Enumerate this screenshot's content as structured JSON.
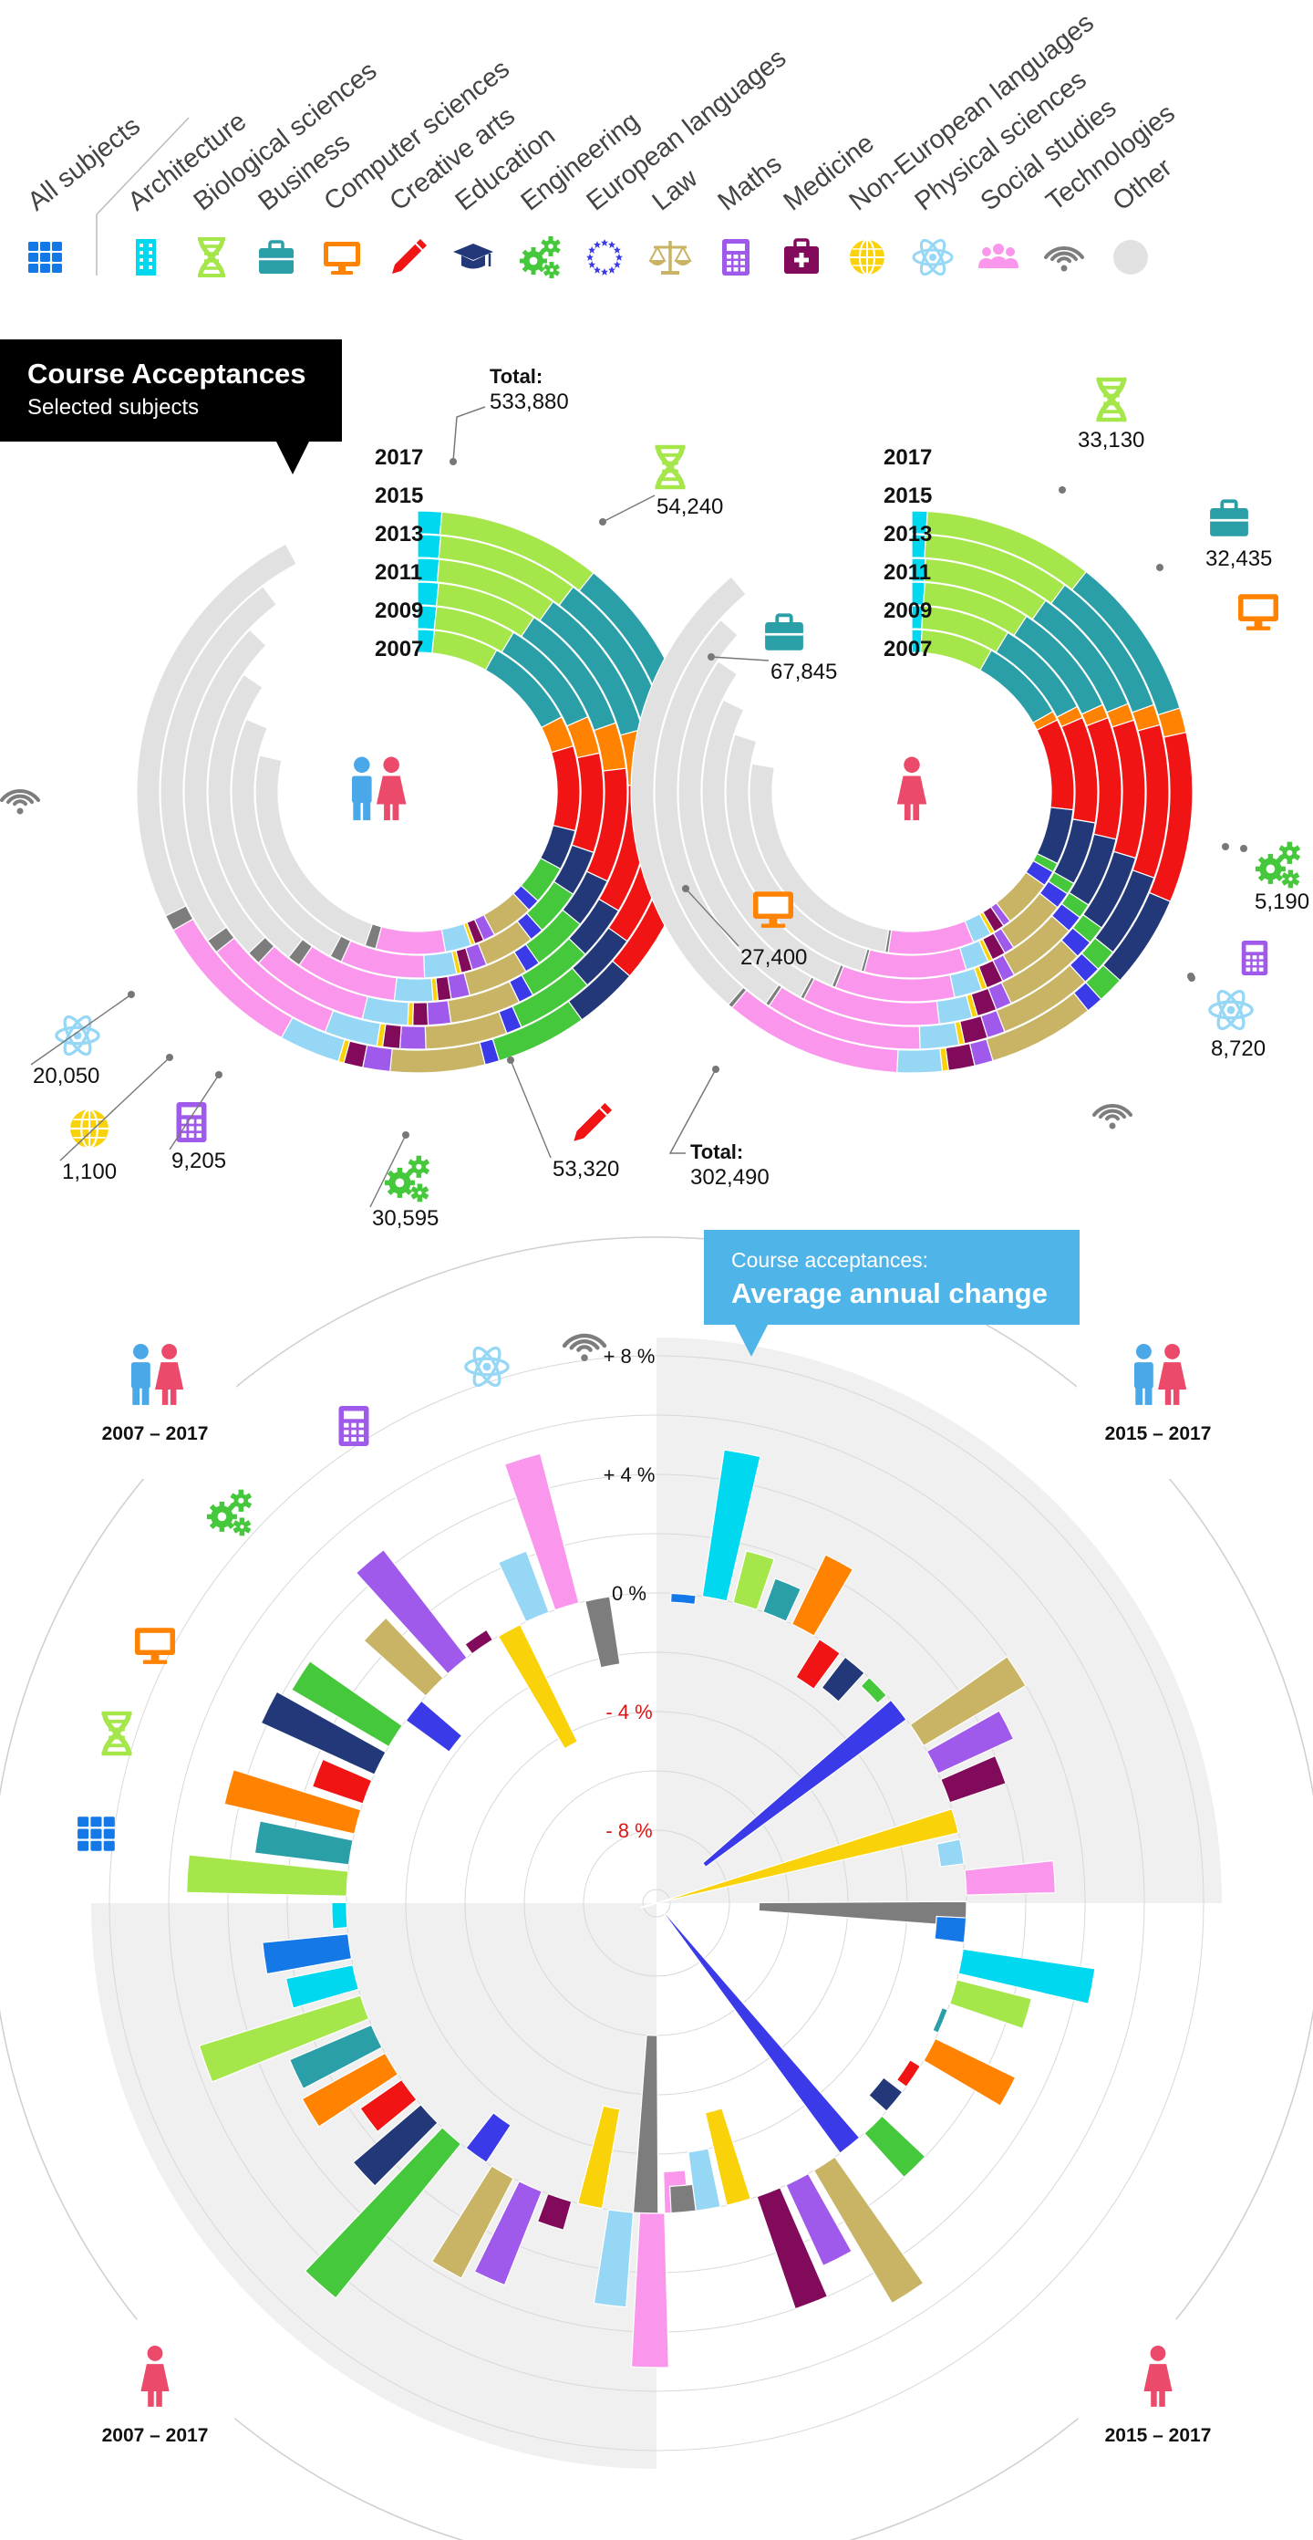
{
  "legend": {
    "items": [
      {
        "key": "all",
        "label": "All subjects",
        "color": "#1478e6",
        "icon": "grid-icon"
      },
      {
        "key": "arch",
        "label": "Architecture",
        "color": "#00d8f0",
        "icon": "building-icon"
      },
      {
        "key": "bio",
        "label": "Biological sciences",
        "color": "#a5e64b",
        "icon": "dna-icon"
      },
      {
        "key": "bus",
        "label": "Business",
        "color": "#2a9fa8",
        "icon": "briefcase-icon"
      },
      {
        "key": "comp",
        "label": "Computer sciences",
        "color": "#ff8200",
        "icon": "monitor-icon"
      },
      {
        "key": "crea",
        "label": "Creative arts",
        "color": "#f01414",
        "icon": "pencil-icon"
      },
      {
        "key": "edu",
        "label": "Education",
        "color": "#233878",
        "icon": "graduation-cap-icon"
      },
      {
        "key": "eng",
        "label": "Engineering",
        "color": "#46c83c",
        "icon": "gears-icon"
      },
      {
        "key": "euro",
        "label": "European languages",
        "color": "#3a3ae8",
        "icon": "eu-stars-icon"
      },
      {
        "key": "law",
        "label": "Law",
        "color": "#c8b464",
        "icon": "scales-icon"
      },
      {
        "key": "math",
        "label": "Maths",
        "color": "#a05aeb",
        "icon": "calculator-icon"
      },
      {
        "key": "med",
        "label": "Medicine",
        "color": "#820a5a",
        "icon": "medical-case-icon"
      },
      {
        "key": "noneu",
        "label": "Non-European languages",
        "color": "#fad20a",
        "icon": "globe-icon"
      },
      {
        "key": "phys",
        "label": "Physical sciences",
        "color": "#96d7f5",
        "icon": "atom-icon"
      },
      {
        "key": "soc",
        "label": "Social studies",
        "color": "#fa96eb",
        "icon": "people-icon"
      },
      {
        "key": "tech",
        "label": "Technologies",
        "color": "#7d7d7d",
        "icon": "wifi-icon"
      },
      {
        "key": "other",
        "label": "Other",
        "color": "#e1e1e1",
        "icon": "circle-icon"
      }
    ]
  },
  "header_box": {
    "title": "Course Acceptances",
    "subtitle": "Selected subjects"
  },
  "avg_box": {
    "subtitle": "Course acceptances:",
    "title": "Average annual change"
  },
  "chart_data": [
    {
      "type": "radial-stacked-bar",
      "title": "Course Acceptances",
      "subtitle": "Selected subjects",
      "group": "All (men and women)",
      "years": [
        "2017",
        "2015",
        "2013",
        "2011",
        "2009",
        "2007"
      ],
      "total_label": "Total:",
      "total": "533,880",
      "annotated_2017": [
        {
          "subject": "Biological sciences",
          "value": "54,240"
        },
        {
          "subject": "Business",
          "value": "67,845"
        },
        {
          "subject": "Computer sciences",
          "value": "27,400"
        },
        {
          "subject": "Creative arts",
          "value": "53,320"
        },
        {
          "subject": "Engineering",
          "value": "30,595"
        },
        {
          "subject": "Maths",
          "value": "9,205"
        },
        {
          "subject": "Non-European languages",
          "value": "1,100"
        },
        {
          "subject": "Physical sciences",
          "value": "20,050"
        }
      ]
    },
    {
      "type": "radial-stacked-bar",
      "group": "Women",
      "years": [
        "2017",
        "2015",
        "2013",
        "2011",
        "2009",
        "2007"
      ],
      "total_label": "Total:",
      "total": "302,490",
      "annotated_2017": [
        {
          "subject": "Biological sciences",
          "value": "33,130"
        },
        {
          "subject": "Business",
          "value": "32,435"
        },
        {
          "subject": "Engineering",
          "value": "5,190"
        },
        {
          "subject": "Physical sciences",
          "value": "8,720"
        }
      ]
    },
    {
      "type": "radial-bar",
      "title": "Average annual change",
      "axis_labels": [
        "+ 8 %",
        "+ 4 %",
        "0 %",
        "- 4 %",
        "- 8 %"
      ],
      "range": [
        -12,
        12
      ],
      "subjects": [
        "Architecture",
        "Biological sciences",
        "Business",
        "Computer sciences",
        "Creative arts",
        "Education",
        "Engineering",
        "European languages",
        "Law",
        "Maths",
        "Medicine",
        "Non-European languages",
        "Physical sciences",
        "Social studies",
        "Technologies"
      ],
      "quadrants": [
        {
          "name": "All 2007 – 2017",
          "period": "2007 – 2017",
          "group": "all",
          "series": [
            {
              "subject": "All subjects",
              "value": 2.5
            },
            {
              "subject": "Architecture",
              "value": 0.5
            },
            {
              "subject": "Biological sciences",
              "value": 5.4
            },
            {
              "subject": "Business",
              "value": 3.2
            },
            {
              "subject": "Computer sciences",
              "value": 4.5
            },
            {
              "subject": "Creative arts",
              "value": 1.8
            },
            {
              "subject": "Education",
              "value": 4.2
            },
            {
              "subject": "Engineering",
              "value": 3.8
            },
            {
              "subject": "European languages",
              "value": -1.8
            },
            {
              "subject": "Law",
              "value": 2.8
            },
            {
              "subject": "Maths",
              "value": 4.6
            },
            {
              "subject": "Medicine",
              "value": 0.4
            },
            {
              "subject": "Non-European languages",
              "value": -4.4
            },
            {
              "subject": "Physical sciences",
              "value": 2.2
            },
            {
              "subject": "Social studies",
              "value": 5.2
            },
            {
              "subject": "Technologies",
              "value": -2.3
            }
          ]
        },
        {
          "name": "All 2015 – 2017",
          "period": "2015 – 2017",
          "group": "all",
          "series": [
            {
              "subject": "All subjects",
              "value": -0.3
            },
            {
              "subject": "Architecture",
              "value": 5.0
            },
            {
              "subject": "Biological sciences",
              "value": 1.8
            },
            {
              "subject": "Business",
              "value": 1.2
            },
            {
              "subject": "Computer sciences",
              "value": 2.6
            },
            {
              "subject": "Creative arts",
              "value": -1.5
            },
            {
              "subject": "Education",
              "value": -1.3
            },
            {
              "subject": "Engineering",
              "value": -0.4
            },
            {
              "subject": "European languages",
              "value": -8.4
            },
            {
              "subject": "Law",
              "value": 4.0
            },
            {
              "subject": "Maths",
              "value": 2.8
            },
            {
              "subject": "Medicine",
              "value": 2.0
            },
            {
              "subject": "Non-European languages",
              "value": -11.0
            },
            {
              "subject": "Physical sciences",
              "value": -0.8
            },
            {
              "subject": "Social studies",
              "value": 3.0
            },
            {
              "subject": "Technologies",
              "value": -7.0
            }
          ]
        },
        {
          "name": "Women 2015 – 2017",
          "period": "2015 – 2017",
          "group": "women",
          "series": [
            {
              "subject": "All subjects",
              "value": -1.0
            },
            {
              "subject": "Architecture",
              "value": 4.5
            },
            {
              "subject": "Biological sciences",
              "value": 2.6
            },
            {
              "subject": "Business",
              "value": -0.2
            },
            {
              "subject": "Computer sciences",
              "value": 3.0
            },
            {
              "subject": "Creative arts",
              "value": -0.4
            },
            {
              "subject": "Education",
              "value": -0.8
            },
            {
              "subject": "Engineering",
              "value": 2.0
            },
            {
              "subject": "European languages",
              "value": -10.5
            },
            {
              "subject": "Law",
              "value": 5.2
            },
            {
              "subject": "Maths",
              "value": 3.0
            },
            {
              "subject": "Medicine",
              "value": 4.0
            },
            {
              "subject": "Non-European languages",
              "value": -3.2
            },
            {
              "subject": "Physical sciences",
              "value": -2.0
            },
            {
              "subject": "Social studies",
              "value": -1.4
            },
            {
              "subject": "Technologies",
              "value": -6.0
            }
          ]
        },
        {
          "name": "Women 2007 – 2017",
          "period": "2007 – 2017",
          "group": "women",
          "series": [
            {
              "subject": "All subjects",
              "value": 2.9
            },
            {
              "subject": "Architecture",
              "value": 2.3
            },
            {
              "subject": "Biological sciences",
              "value": 5.7
            },
            {
              "subject": "Business",
              "value": 3.0
            },
            {
              "subject": "Computer sciences",
              "value": 3.2
            },
            {
              "subject": "Creative arts",
              "value": 1.7
            },
            {
              "subject": "Education",
              "value": 3.0
            },
            {
              "subject": "Engineering",
              "value": 6.7
            },
            {
              "subject": "European languages",
              "value": -1.5
            },
            {
              "subject": "Law",
              "value": 3.8
            },
            {
              "subject": "Maths",
              "value": 3.4
            },
            {
              "subject": "Medicine",
              "value": 1.0
            },
            {
              "subject": "Non-European languages",
              "value": -3.4
            },
            {
              "subject": "Physical sciences",
              "value": 3.2
            },
            {
              "subject": "Social studies",
              "value": 5.2
            },
            {
              "subject": "Technologies",
              "value": -0.9
            }
          ]
        }
      ]
    }
  ]
}
